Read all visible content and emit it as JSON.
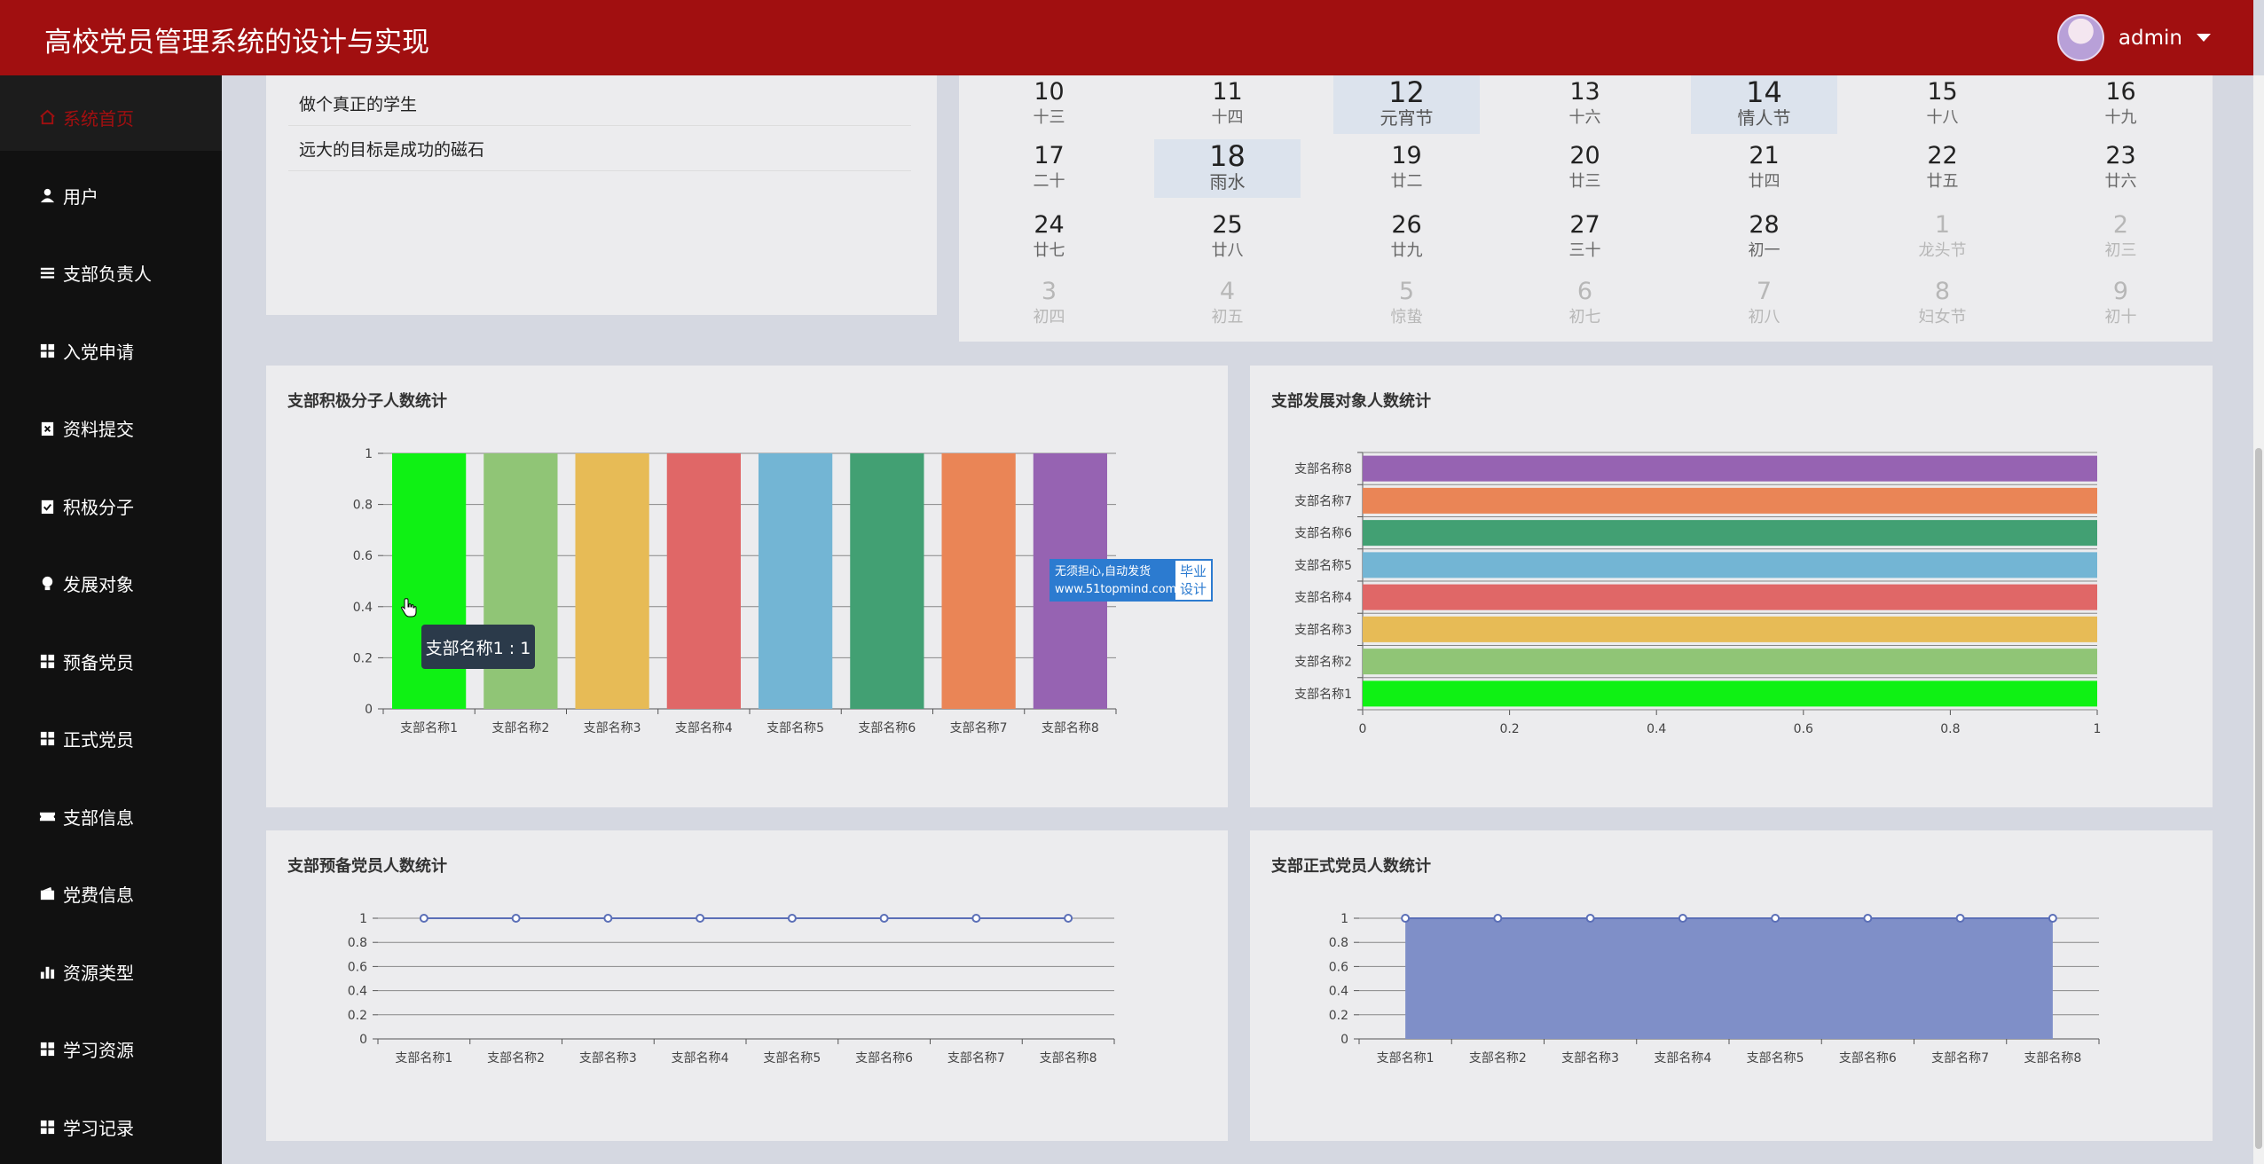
{
  "header": {
    "title": "高校党员管理系统的设计与实现",
    "username": "admin"
  },
  "sidebar": {
    "items": [
      {
        "label": "系统首页",
        "icon": "home-icon"
      },
      {
        "label": "用户",
        "icon": "user-icon"
      },
      {
        "label": "支部负责人",
        "icon": "list-icon"
      },
      {
        "label": "入党申请",
        "icon": "grid-icon"
      },
      {
        "label": "资料提交",
        "icon": "clipboard-x-icon"
      },
      {
        "label": "积极分子",
        "icon": "clipboard-check-icon"
      },
      {
        "label": "发展对象",
        "icon": "bulb-icon"
      },
      {
        "label": "预备党员",
        "icon": "grid-icon"
      },
      {
        "label": "正式党员",
        "icon": "grid-icon"
      },
      {
        "label": "支部信息",
        "icon": "ticket-icon"
      },
      {
        "label": "党费信息",
        "icon": "wallet-icon"
      },
      {
        "label": "资源类型",
        "icon": "bar-chart-icon"
      },
      {
        "label": "学习资源",
        "icon": "grid-icon"
      },
      {
        "label": "学习记录",
        "icon": "grid-icon"
      }
    ]
  },
  "mottos": [
    "做个真正的学生",
    "远大的目标是成功的磁石"
  ],
  "calendar": {
    "rows": [
      [
        {
          "d": "10",
          "l": "十三"
        },
        {
          "d": "11",
          "l": "十四"
        },
        {
          "d": "12",
          "l": "元宵节",
          "hl": true
        },
        {
          "d": "13",
          "l": "十六"
        },
        {
          "d": "14",
          "l": "情人节",
          "hl": true
        },
        {
          "d": "15",
          "l": "十八"
        },
        {
          "d": "16",
          "l": "十九"
        }
      ],
      [
        {
          "d": "17",
          "l": "二十"
        },
        {
          "d": "18",
          "l": "雨水",
          "hl": true
        },
        {
          "d": "19",
          "l": "廿二"
        },
        {
          "d": "20",
          "l": "廿三"
        },
        {
          "d": "21",
          "l": "廿四"
        },
        {
          "d": "22",
          "l": "廿五"
        },
        {
          "d": "23",
          "l": "廿六"
        }
      ],
      [
        {
          "d": "24",
          "l": "廿七"
        },
        {
          "d": "25",
          "l": "廿八"
        },
        {
          "d": "26",
          "l": "廿九"
        },
        {
          "d": "27",
          "l": "三十"
        },
        {
          "d": "28",
          "l": "初一"
        },
        {
          "d": "1",
          "l": "龙头节",
          "other": true
        },
        {
          "d": "2",
          "l": "初三",
          "other": true
        }
      ],
      [
        {
          "d": "3",
          "l": "初四",
          "other": true
        },
        {
          "d": "4",
          "l": "初五",
          "other": true
        },
        {
          "d": "5",
          "l": "惊蛰",
          "other": true
        },
        {
          "d": "6",
          "l": "初七",
          "other": true
        },
        {
          "d": "7",
          "l": "初八",
          "other": true
        },
        {
          "d": "8",
          "l": "妇女节",
          "other": true
        },
        {
          "d": "9",
          "l": "初十",
          "other": true
        }
      ]
    ]
  },
  "tooltip": "支部名称1 : 1",
  "watermark": {
    "line1": "无须担心,自动发货",
    "line2": "www.51topmind.com",
    "right": "毕业设计"
  },
  "colors": [
    "#0ff114",
    "#90c576",
    "#e7bb56",
    "#e06767",
    "#73b5d4",
    "#42a073",
    "#ea8556",
    "#9663b2"
  ],
  "chart_data": [
    {
      "type": "bar",
      "title": "支部积极分子人数统计",
      "categories": [
        "支部名称1",
        "支部名称2",
        "支部名称3",
        "支部名称4",
        "支部名称5",
        "支部名称6",
        "支部名称7",
        "支部名称8"
      ],
      "values": [
        1,
        1,
        1,
        1,
        1,
        1,
        1,
        1
      ],
      "ylim": [
        0,
        1
      ],
      "yticks": [
        "0",
        "0.2",
        "0.4",
        "0.6",
        "0.8",
        "1"
      ]
    },
    {
      "type": "bar",
      "orientation": "horizontal",
      "title": "支部发展对象人数统计",
      "categories": [
        "支部名称1",
        "支部名称2",
        "支部名称3",
        "支部名称4",
        "支部名称5",
        "支部名称6",
        "支部名称7",
        "支部名称8"
      ],
      "values": [
        1,
        1,
        1,
        1,
        1,
        1,
        1,
        1
      ],
      "xlim": [
        0,
        1
      ],
      "xticks": [
        "0",
        "0.2",
        "0.4",
        "0.6",
        "0.8",
        "1"
      ]
    },
    {
      "type": "line",
      "title": "支部预备党员人数统计",
      "categories": [
        "支部名称1",
        "支部名称2",
        "支部名称3",
        "支部名称4",
        "支部名称5",
        "支部名称6",
        "支部名称7",
        "支部名称8"
      ],
      "values": [
        1,
        1,
        1,
        1,
        1,
        1,
        1,
        1
      ],
      "ylim": [
        0,
        1
      ],
      "yticks": [
        "0",
        "0.2",
        "0.4",
        "0.6",
        "0.8",
        "1"
      ]
    },
    {
      "type": "area",
      "title": "支部正式党员人数统计",
      "categories": [
        "支部名称1",
        "支部名称2",
        "支部名称3",
        "支部名称4",
        "支部名称5",
        "支部名称6",
        "支部名称7",
        "支部名称8"
      ],
      "values": [
        1,
        1,
        1,
        1,
        1,
        1,
        1,
        1
      ],
      "ylim": [
        0,
        1
      ],
      "yticks": [
        "0",
        "0.2",
        "0.4",
        "0.6",
        "0.8",
        "1"
      ]
    }
  ]
}
